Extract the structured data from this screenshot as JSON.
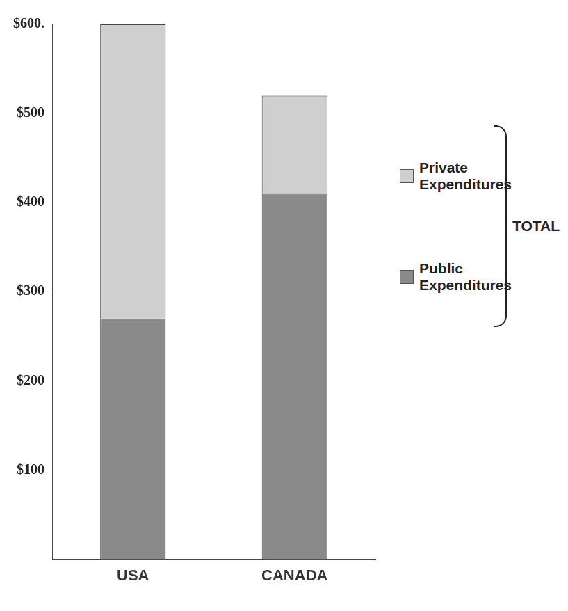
{
  "chart_data": {
    "type": "bar",
    "stacked": true,
    "categories": [
      "USA",
      "CANADA"
    ],
    "series": [
      {
        "name": "Public Expenditures",
        "color": "#8a8a8a",
        "values": [
          270,
          410
        ]
      },
      {
        "name": "Private Expenditures",
        "color": "#cfcfcf",
        "values": [
          330,
          110
        ]
      }
    ],
    "annotation": "TOTAL",
    "ylim": [
      0,
      600
    ],
    "yticks": [
      {
        "value": 100,
        "label": "$100"
      },
      {
        "value": 200,
        "label": "$200"
      },
      {
        "value": 300,
        "label": "$300"
      },
      {
        "value": 400,
        "label": "$400"
      },
      {
        "value": 500,
        "label": "$500"
      },
      {
        "value": 600,
        "label": "$600."
      }
    ],
    "grid": false,
    "legend": "right"
  }
}
